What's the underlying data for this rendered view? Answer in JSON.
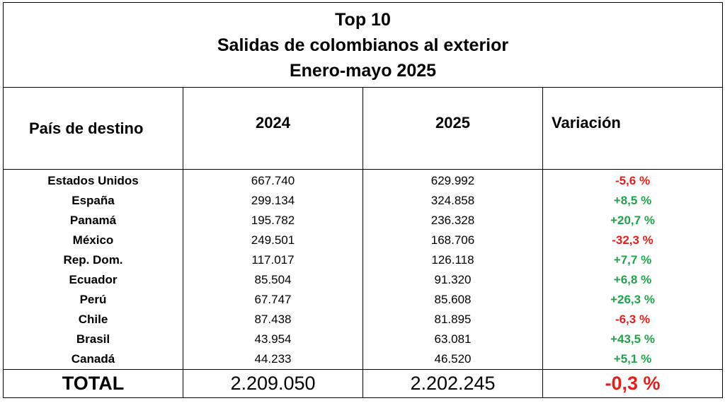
{
  "chart_data": {
    "type": "table",
    "title_lines": [
      "Top 10",
      "Salidas de colombianos al exterior",
      "Enero-mayo 2025"
    ],
    "columns": [
      "País de destino",
      "2024",
      "2025",
      "Variación"
    ],
    "rows": [
      {
        "country": "Estados Unidos",
        "y2024": "667.740",
        "y2025": "629.992",
        "variation": "-5,6 %",
        "sign": "neg"
      },
      {
        "country": "España",
        "y2024": "299.134",
        "y2025": "324.858",
        "variation": "+8,5 %",
        "sign": "pos"
      },
      {
        "country": "Panamá",
        "y2024": "195.782",
        "y2025": "236.328",
        "variation": "+20,7 %",
        "sign": "pos"
      },
      {
        "country": "México",
        "y2024": "249.501",
        "y2025": "168.706",
        "variation": "-32,3 %",
        "sign": "neg"
      },
      {
        "country": "Rep. Dom.",
        "y2024": "117.017",
        "y2025": "126.118",
        "variation": "+7,7 %",
        "sign": "pos"
      },
      {
        "country": "Ecuador",
        "y2024": "85.504",
        "y2025": "91.320",
        "variation": "+6,8 %",
        "sign": "pos"
      },
      {
        "country": "Perú",
        "y2024": "67.747",
        "y2025": "85.608",
        "variation": "+26,3 %",
        "sign": "pos"
      },
      {
        "country": "Chile",
        "y2024": "87.438",
        "y2025": "81.895",
        "variation": "-6,3 %",
        "sign": "neg"
      },
      {
        "country": "Brasil",
        "y2024": "43.954",
        "y2025": "63.081",
        "variation": "+43,5 %",
        "sign": "pos"
      },
      {
        "country": "Canadá",
        "y2024": "44.233",
        "y2025": "46.520",
        "variation": "+5,1 %",
        "sign": "pos"
      }
    ],
    "total": {
      "label": "TOTAL",
      "y2024": "2.209.050",
      "y2025": "2.202.245",
      "variation": "-0,3 %",
      "sign": "neg"
    },
    "colors": {
      "positive": "#1fa34a",
      "negative": "#e0201b"
    }
  }
}
